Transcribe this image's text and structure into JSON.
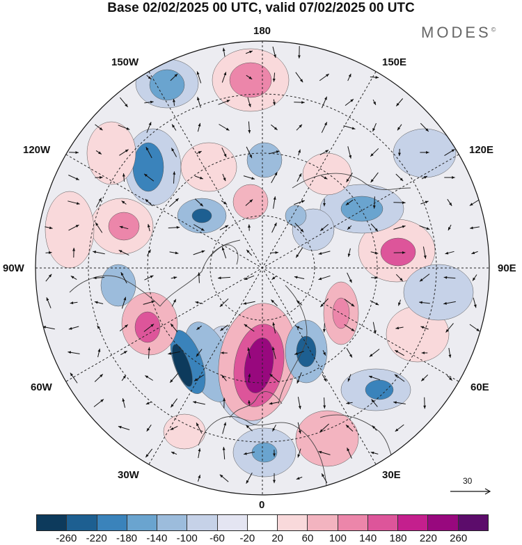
{
  "title": "Base 02/02/2025 00 UTC, valid 07/02/2025 00 UTC",
  "brand": "MODES",
  "brand_mark": "©",
  "longitude_labels": {
    "top": "180",
    "top_left": "150W",
    "top_right": "150E",
    "upper_left": "120W",
    "upper_right": "120E",
    "left": "90W",
    "right": "90E",
    "lower_left": "60W",
    "lower_right": "60E",
    "bottom_left": "30W",
    "bottom_right": "30E",
    "bottom": "0"
  },
  "reference_vector": {
    "value": "30"
  },
  "colorbar": {
    "colors": [
      "#0d3a5c",
      "#1d5f91",
      "#3a83bb",
      "#6aa4cf",
      "#9cbcdc",
      "#c6d2e8",
      "#e4e5f2",
      "#ffffff",
      "#f9d9db",
      "#f3b4c0",
      "#ec86aa",
      "#dd559a",
      "#c41f8d",
      "#98087e",
      "#5c0c6b"
    ],
    "tick_labels": [
      "-260",
      "-220",
      "-180",
      "-140",
      "-100",
      "-60",
      "-20",
      "20",
      "60",
      "100",
      "140",
      "180",
      "220",
      "260"
    ]
  },
  "map_style": {
    "background": "#e8e8e8",
    "land_outline": "#444444",
    "grid_line": "#222222",
    "arrow_color": "#111111"
  }
}
